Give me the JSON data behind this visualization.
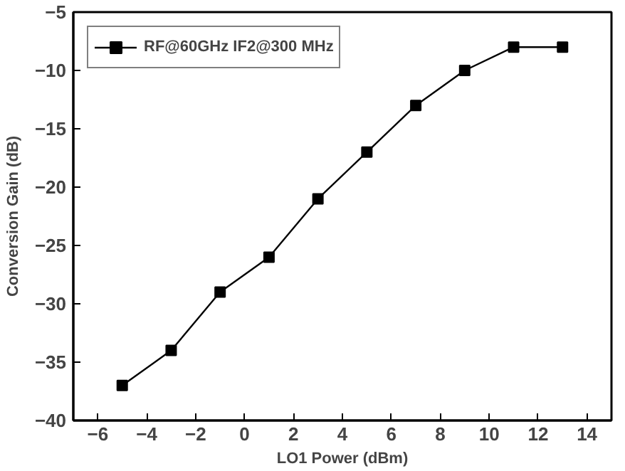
{
  "chart_data": {
    "type": "line",
    "xlabel": "LO1 Power (dBm)",
    "ylabel": "Conversion Gain (dB)",
    "x": [
      -5,
      -3,
      -1,
      1,
      3,
      5,
      7,
      9,
      11,
      13
    ],
    "series": [
      {
        "name": "RF@60GHz IF2@300 MHz",
        "color": "#000000",
        "values": [
          -37,
          -34,
          -29,
          -26,
          -21,
          -17,
          -13,
          -10,
          -8,
          -8
        ]
      }
    ],
    "xlim": [
      -7,
      15
    ],
    "xticks": [
      -6,
      -4,
      -2,
      0,
      2,
      4,
      6,
      8,
      10,
      12,
      14
    ],
    "ylim": [
      -40,
      -5
    ],
    "yticks": [
      -40,
      -35,
      -30,
      -25,
      -20,
      -15,
      -10,
      -5
    ],
    "grid": false,
    "legend": "top left",
    "marker": "square",
    "line_style": "solid"
  }
}
